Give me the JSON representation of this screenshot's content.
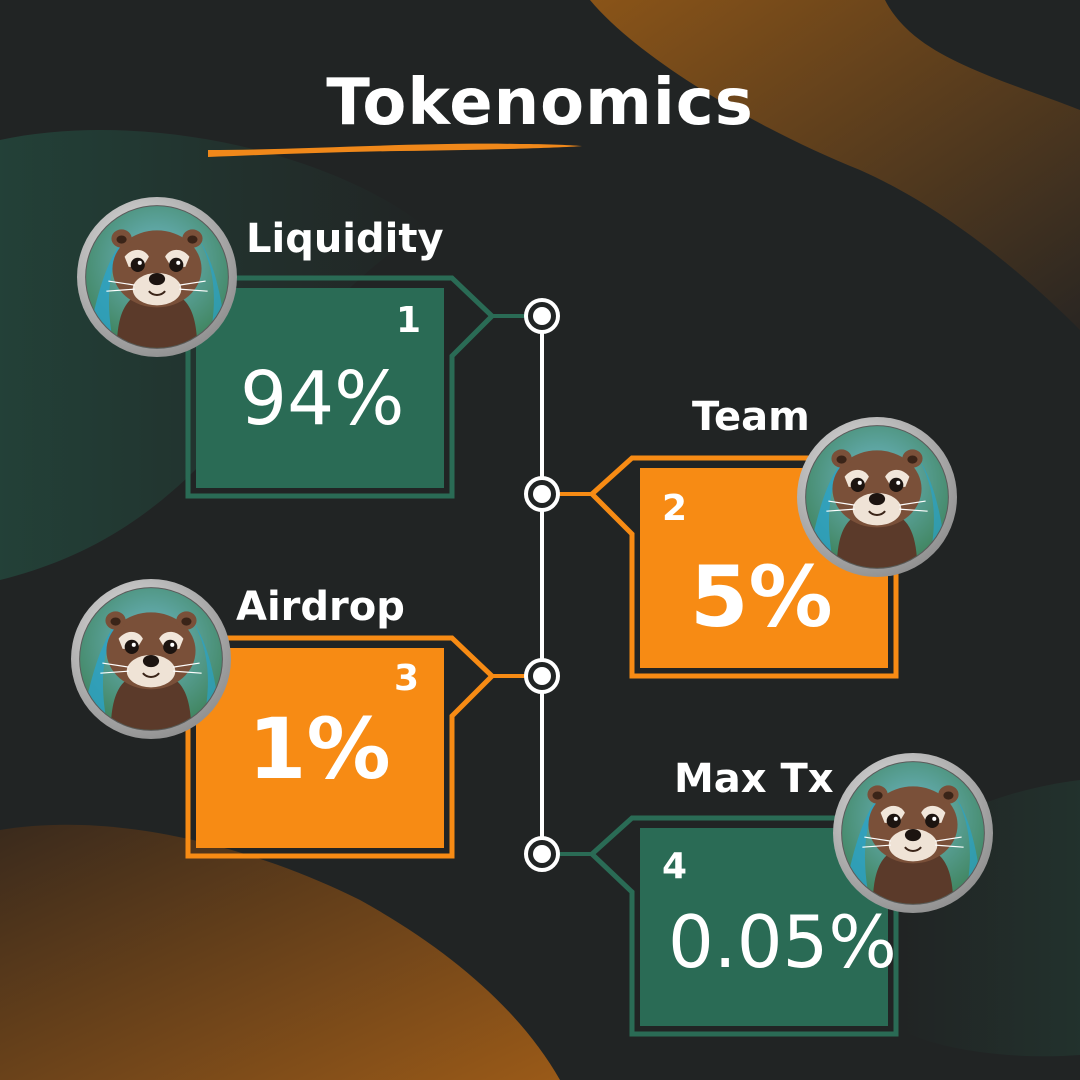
{
  "page": {
    "title": "Tokenomics"
  },
  "colors": {
    "background": "#212424",
    "green": "#2a6b55",
    "orange": "#f78b14",
    "accent_line": "#f0881a",
    "connector": "#ffffff"
  },
  "avatar_icon": "otter-mascot-icon",
  "items": [
    {
      "label": "Liquidity",
      "number": "1",
      "value": "94%",
      "color": "green"
    },
    {
      "label": "Team",
      "number": "2",
      "value": "5%",
      "color": "orange"
    },
    {
      "label": "Airdrop",
      "number": "3",
      "value": "1%",
      "color": "orange"
    },
    {
      "label": "Max Tx",
      "number": "4",
      "value": "0.05%",
      "color": "green"
    }
  ]
}
